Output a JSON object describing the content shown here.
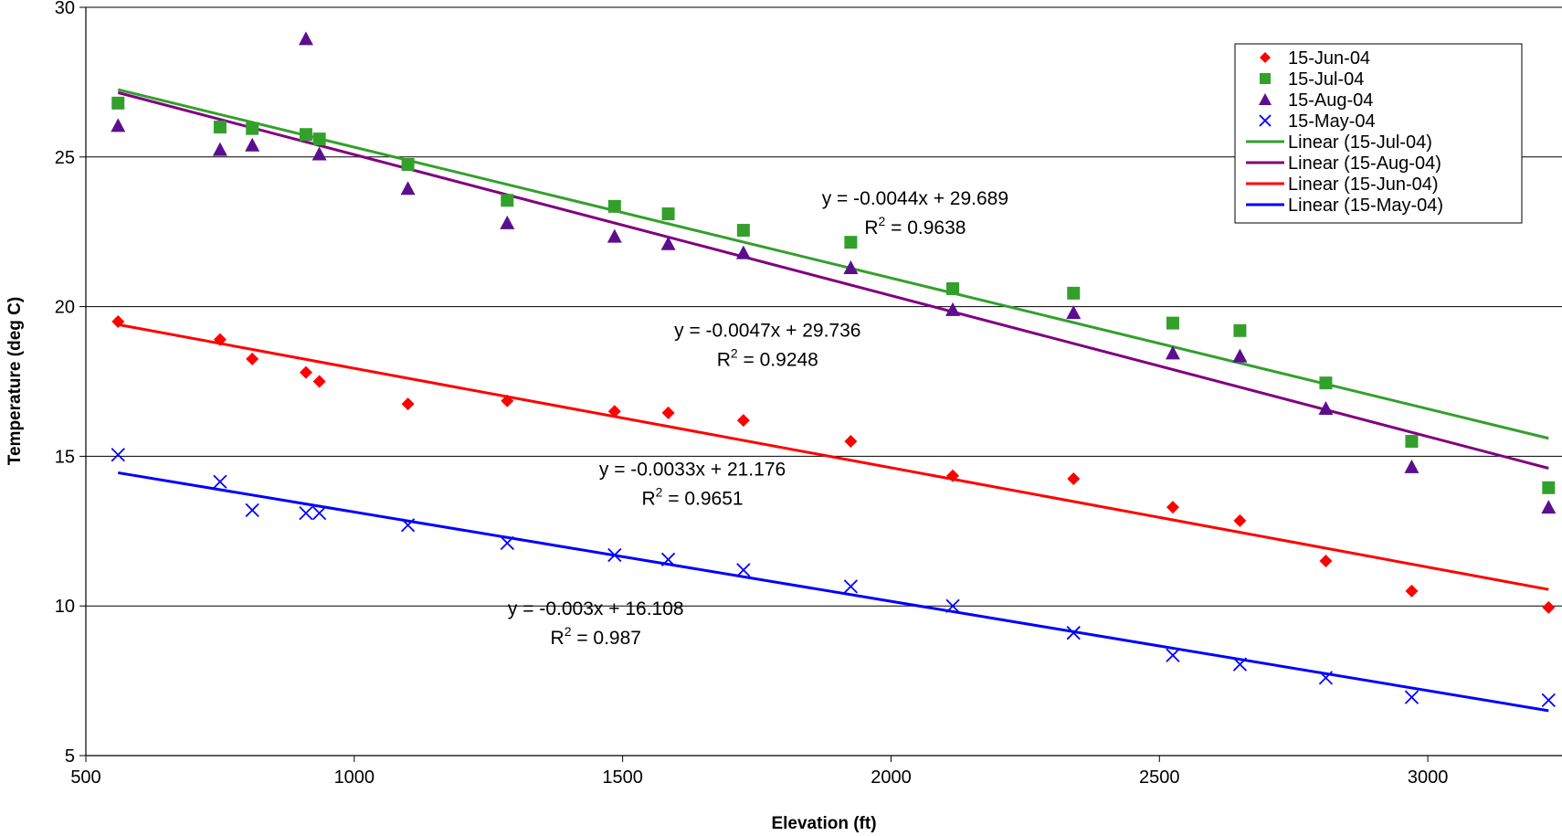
{
  "chart_data": {
    "type": "scatter",
    "title": "",
    "xlabel": "Elevation (ft)",
    "ylabel": "Temperature (deg C)",
    "xlim": [
      500,
      3250
    ],
    "ylim": [
      5,
      30
    ],
    "x_ticks": [
      500,
      1000,
      1500,
      2000,
      2500,
      3000
    ],
    "y_ticks": [
      5,
      10,
      15,
      20,
      25,
      30
    ],
    "grid": "horizontal",
    "legend_position": "top-right",
    "series": [
      {
        "name": "15-Jun-04",
        "marker": "diamond",
        "color": "#ff0000",
        "x": [
          560,
          750,
          810,
          910,
          935,
          1100,
          1285,
          1485,
          1585,
          1725,
          1925,
          2115,
          2340,
          2525,
          2650,
          2810,
          2970,
          3225
        ],
        "y": [
          19.5,
          18.9,
          18.25,
          17.8,
          17.5,
          16.75,
          16.85,
          16.5,
          16.45,
          16.2,
          15.5,
          14.35,
          14.25,
          13.3,
          12.85,
          11.5,
          10.5,
          9.95
        ]
      },
      {
        "name": "15-Jul-04",
        "marker": "square",
        "color": "#33a02c",
        "x": [
          560,
          750,
          810,
          910,
          935,
          1100,
          1285,
          1485,
          1585,
          1725,
          1925,
          2115,
          2340,
          2525,
          2650,
          2810,
          2970,
          3225
        ],
        "y": [
          26.8,
          26.0,
          25.95,
          25.75,
          25.6,
          24.75,
          23.55,
          23.35,
          23.1,
          22.55,
          22.15,
          20.6,
          20.45,
          19.45,
          19.2,
          17.45,
          15.5,
          13.95
        ]
      },
      {
        "name": "15-Aug-04",
        "marker": "triangle",
        "color": "#5b0f8f",
        "x": [
          560,
          750,
          810,
          910,
          935,
          1100,
          1285,
          1485,
          1585,
          1725,
          1925,
          2115,
          2340,
          2525,
          2650,
          2810,
          2970,
          3225
        ],
        "y": [
          26.05,
          25.25,
          25.4,
          28.95,
          25.1,
          23.95,
          22.8,
          22.35,
          22.1,
          21.8,
          21.3,
          19.9,
          19.8,
          18.45,
          18.35,
          16.6,
          14.65,
          13.3
        ]
      },
      {
        "name": "15-May-04",
        "marker": "x",
        "color": "#0000ff",
        "x": [
          560,
          750,
          810,
          910,
          935,
          1100,
          1285,
          1485,
          1585,
          1725,
          1925,
          2115,
          2340,
          2525,
          2650,
          2810,
          2970,
          3225
        ],
        "y": [
          15.05,
          14.15,
          13.2,
          13.1,
          13.1,
          12.7,
          12.1,
          11.7,
          11.55,
          11.2,
          10.65,
          10.0,
          9.1,
          8.35,
          8.05,
          7.6,
          6.95,
          6.85
        ]
      }
    ],
    "trendlines": [
      {
        "name": "Linear (15-Jul-04)",
        "color": "#33a02c",
        "x": [
          560,
          3225
        ],
        "y": [
          27.25,
          15.6
        ]
      },
      {
        "name": "Linear (15-Aug-04)",
        "color": "#800080",
        "x": [
          560,
          3225
        ],
        "y": [
          27.15,
          14.6
        ]
      },
      {
        "name": "Linear (15-Jun-04)",
        "color": "#ff0000",
        "x": [
          560,
          3225
        ],
        "y": [
          19.4,
          10.55
        ]
      },
      {
        "name": "Linear (15-May-04)",
        "color": "#0000ff",
        "x": [
          560,
          3225
        ],
        "y": [
          14.45,
          6.5
        ]
      }
    ],
    "annotations": [
      {
        "id": "eq-jul",
        "equation": "y = -0.0044x + 29.689",
        "r2_prefix": "R",
        "r2_sup": "2",
        "r2_value": " = 0.9638",
        "x": 2045,
        "y": 23.4
      },
      {
        "id": "eq-aug",
        "equation": "y = -0.0047x + 29.736",
        "r2_prefix": "R",
        "r2_sup": "2",
        "r2_value": " = 0.9248",
        "x": 1770,
        "y": 19.0
      },
      {
        "id": "eq-jun",
        "equation": "y = -0.0033x + 21.176",
        "r2_prefix": "R",
        "r2_sup": "2",
        "r2_value": " = 0.9651",
        "x": 1630,
        "y": 14.35
      },
      {
        "id": "eq-may",
        "equation": "y = -0.003x + 16.108",
        "r2_prefix": "R",
        "r2_sup": "2",
        "r2_value": " = 0.987",
        "x": 1450,
        "y": 9.7
      }
    ]
  }
}
